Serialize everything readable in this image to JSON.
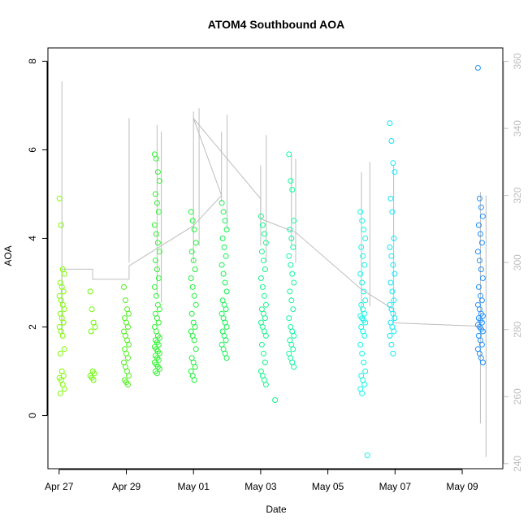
{
  "chart_data": {
    "type": "scatter",
    "title": "ATOM4 Southbound AOA",
    "xlabel": "Date",
    "ylabel": "AOA",
    "x_ticks": [
      "Apr 27",
      "Apr 29",
      "May 01",
      "May 03",
      "May 05",
      "May 07",
      "May 09"
    ],
    "x_tick_dates": [
      "2024-04-27",
      "2024-04-29",
      "2024-05-01",
      "2024-05-03",
      "2024-05-05",
      "2024-05-07",
      "2024-05-09"
    ],
    "xlim": [
      "2024-04-26 16:00",
      "2024-05-10 05:00"
    ],
    "ylim": [
      -1.2,
      8.3
    ],
    "y_ticks": [
      0,
      2,
      4,
      6,
      8
    ],
    "y2_ticks": [
      240,
      260,
      280,
      300,
      320,
      340,
      360
    ],
    "y2lim": [
      238.5,
      364.0
    ],
    "grid": false,
    "legend": "none",
    "point_series": [
      {
        "date": "2024-04-27 02:00",
        "values": [
          4.9,
          4.3,
          3.3,
          3.2,
          3.0,
          2.9,
          2.8,
          2.7,
          2.6,
          2.5,
          2.4,
          2.3,
          2.2,
          2.1,
          2.0,
          1.9,
          1.8,
          1.5,
          1.4,
          1.0,
          0.9,
          0.85,
          0.8,
          0.7,
          0.6,
          0.5
        ],
        "color": "#7cfc00"
      },
      {
        "date": "2024-04-28 00:00",
        "values": [
          2.8,
          2.4,
          2.1,
          2.0,
          1.9,
          1.0,
          0.95,
          0.9,
          0.85,
          0.8
        ],
        "color": "#6afc00"
      },
      {
        "date": "2024-04-29 00:00",
        "values": [
          2.9,
          2.6,
          2.4,
          2.3,
          2.2,
          2.1,
          2.0,
          1.9,
          1.8,
          1.7,
          1.6,
          1.5,
          1.4,
          1.3,
          1.2,
          1.1,
          1.0,
          0.9,
          0.8,
          0.75,
          0.7
        ],
        "color": "#4cf21a"
      },
      {
        "date": "2024-04-29 22:00",
        "values": [
          5.9,
          5.8,
          5.5,
          5.3,
          5.0,
          4.8,
          4.6,
          4.3,
          4.1,
          3.9,
          3.7,
          3.5,
          3.3,
          3.1,
          2.9,
          2.7,
          2.5,
          2.4,
          2.3,
          2.2,
          2.1,
          2.0,
          1.9,
          1.8,
          1.75,
          1.7,
          1.65,
          1.6,
          1.55,
          1.5,
          1.45,
          1.4,
          1.35,
          1.3,
          1.25,
          1.2,
          1.15,
          1.1,
          1.05,
          1.0,
          0.95
        ],
        "color": "#2ef22e"
      },
      {
        "date": "2024-05-01 00:00",
        "values": [
          4.6,
          4.4,
          4.2,
          3.9,
          3.7,
          3.5,
          3.3,
          3.1,
          2.9,
          2.7,
          2.5,
          2.3,
          2.1,
          2.0,
          1.9,
          1.8,
          1.7,
          1.5,
          1.3,
          1.2,
          1.1,
          1.0,
          0.9,
          0.8
        ],
        "color": "#1ef23a"
      },
      {
        "date": "2024-05-01 22:00",
        "values": [
          4.8,
          4.6,
          4.4,
          4.2,
          4.0,
          3.8,
          3.6,
          3.4,
          3.2,
          3.0,
          2.8,
          2.6,
          2.5,
          2.4,
          2.3,
          2.2,
          2.1,
          2.0,
          1.9,
          1.8,
          1.7,
          1.6,
          1.5,
          1.4,
          1.3
        ],
        "color": "#14f250"
      },
      {
        "date": "2024-05-03 02:00",
        "values": [
          4.5,
          4.3,
          4.1,
          3.9,
          3.7,
          3.5,
          3.3,
          3.1,
          2.9,
          2.7,
          2.5,
          2.4,
          2.3,
          2.2,
          2.1,
          2.0,
          1.9,
          1.8,
          1.6,
          1.4,
          1.2,
          1.0,
          0.9,
          0.8,
          0.7
        ],
        "color": "#14f58c"
      },
      {
        "date": "2024-05-03 12:00",
        "values": [
          0.35
        ],
        "color": "#14f58c"
      },
      {
        "date": "2024-05-03 22:00",
        "values": [
          5.9,
          5.3,
          5.1,
          4.4,
          4.2,
          4.0,
          3.8,
          3.6,
          3.4,
          3.2,
          3.0,
          2.8,
          2.6,
          2.4,
          2.2,
          2.0,
          1.9,
          1.8,
          1.7,
          1.6,
          1.5,
          1.4,
          1.3,
          1.2,
          1.1
        ],
        "color": "#14f5a0"
      },
      {
        "date": "2024-05-06 01:00",
        "values": [
          4.6,
          4.4,
          4.2,
          4.0,
          3.8,
          3.6,
          3.4,
          3.2,
          3.0,
          2.8,
          2.6,
          2.5,
          2.4,
          2.3,
          2.25,
          2.2,
          2.15,
          2.1,
          2.0,
          1.9,
          1.8,
          1.6,
          1.4,
          1.2,
          1.0,
          0.9,
          0.8,
          0.7,
          0.6,
          0.5
        ],
        "color": "#14f5e6"
      },
      {
        "date": "2024-05-06 06:00",
        "values": [
          -0.9
        ],
        "color": "#14f5e6"
      },
      {
        "date": "2024-05-06 22:00",
        "values": [
          6.6,
          6.2,
          5.7,
          5.5,
          4.9,
          4.6,
          4.0,
          3.8,
          3.6,
          3.4,
          3.2,
          3.0,
          2.8,
          2.6,
          2.5,
          2.4,
          2.3,
          2.2,
          2.1,
          2.0,
          1.9,
          1.8,
          1.6,
          1.4
        ],
        "color": "#14e6f5"
      },
      {
        "date": "2024-05-09 13:00",
        "values": [
          7.85,
          4.9,
          4.7,
          4.5,
          4.3,
          4.1,
          3.9,
          3.7,
          3.5,
          3.3,
          3.1,
          2.9,
          2.7,
          2.6,
          2.5,
          2.4,
          2.3,
          2.25,
          2.2,
          2.15,
          2.1,
          2.05,
          2.0,
          1.95,
          1.9,
          1.8,
          1.7,
          1.6,
          1.5,
          1.4,
          1.3,
          1.2
        ],
        "color": "#1e90ff"
      }
    ],
    "secondary_series": {
      "color": "#bdbdbd",
      "axis": "right",
      "spikes": [
        {
          "date": "2024-04-27 02:00",
          "min": 279,
          "max": 354
        },
        {
          "date": "2024-04-29 02:00",
          "min": 300,
          "max": 343
        },
        {
          "date": "2024-04-29 22:00",
          "min": 290,
          "max": 341
        },
        {
          "date": "2024-04-30 01:00",
          "min": 288,
          "max": 339
        },
        {
          "date": "2024-05-01 00:00",
          "min": 300,
          "max": 345
        },
        {
          "date": "2024-05-01 04:00",
          "min": 305,
          "max": 346
        },
        {
          "date": "2024-05-01 20:00",
          "min": 318,
          "max": 339
        },
        {
          "date": "2024-05-02 00:00",
          "min": 310,
          "max": 344
        },
        {
          "date": "2024-05-03 00:00",
          "min": 305,
          "max": 329
        },
        {
          "date": "2024-05-03 04:00",
          "min": 300,
          "max": 338
        },
        {
          "date": "2024-05-03 22:00",
          "min": 305,
          "max": 332
        },
        {
          "date": "2024-05-04 01:00",
          "min": 300,
          "max": 331
        },
        {
          "date": "2024-05-06 00:00",
          "min": 285,
          "max": 327
        },
        {
          "date": "2024-05-06 06:00",
          "min": 287,
          "max": 330
        },
        {
          "date": "2024-05-06 23:00",
          "min": 287,
          "max": 329
        },
        {
          "date": "2024-05-09 13:00",
          "min": 252,
          "max": 321
        },
        {
          "date": "2024-05-09 17:00",
          "min": 242,
          "max": 320
        }
      ],
      "trend": [
        {
          "date": "2024-04-27 02:00",
          "value": 279
        },
        {
          "date": "2024-04-27 02:00",
          "value": 298
        },
        {
          "date": "2024-04-28 00:00",
          "value": 298
        },
        {
          "date": "2024-04-28 00:00",
          "value": 295
        },
        {
          "date": "2024-04-29 02:00",
          "value": 295
        },
        {
          "date": "2024-04-29 02:00",
          "value": 299
        },
        {
          "date": "2024-05-01 00:00",
          "value": 311
        },
        {
          "date": "2024-05-01 20:00",
          "value": 320
        },
        {
          "date": "2024-05-01 00:00",
          "value": 343
        },
        {
          "date": "2024-05-03 00:00",
          "value": 319
        },
        {
          "date": "2024-05-03 00:00",
          "value": 313
        },
        {
          "date": "2024-05-04 01:00",
          "value": 309
        },
        {
          "date": "2024-05-06 00:00",
          "value": 292
        },
        {
          "date": "2024-05-06 23:00",
          "value": 286
        },
        {
          "date": "2024-05-06 23:00",
          "value": 282
        },
        {
          "date": "2024-05-09 13:00",
          "value": 281
        }
      ]
    }
  }
}
